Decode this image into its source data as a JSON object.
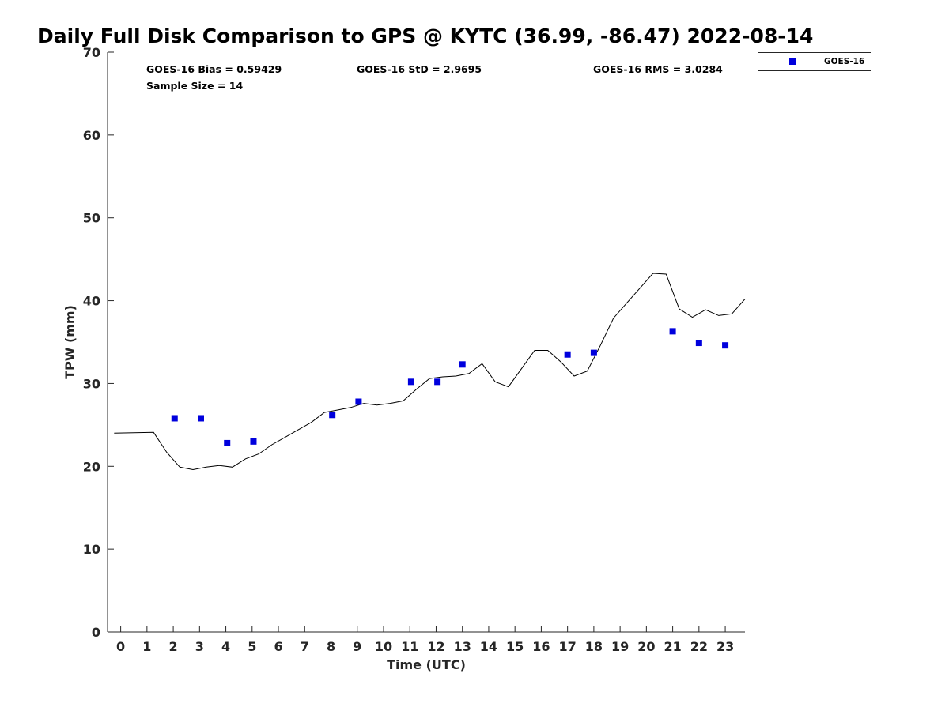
{
  "chart_data": {
    "type": "scatter",
    "title": "Daily Full Disk Comparison to GPS @ KYTC (36.99, -86.47) 2022-08-14",
    "xlabel": "Time (UTC)",
    "ylabel": "TPW (mm)",
    "xlim": [
      -0.5,
      23.75
    ],
    "ylim": [
      0,
      70
    ],
    "xticks": [
      0,
      1,
      2,
      3,
      4,
      5,
      6,
      7,
      8,
      9,
      10,
      11,
      12,
      13,
      14,
      15,
      16,
      17,
      18,
      19,
      20,
      21,
      22,
      23
    ],
    "yticks": [
      0,
      10,
      20,
      30,
      40,
      50,
      60,
      70
    ],
    "grid": false,
    "legend_position": "top-right (outside)",
    "stats": {
      "bias": "GOES-16 Bias = 0.59429",
      "std": "GOES-16 StD = 2.9695",
      "rms": "GOES-16 RMS = 3.0284",
      "sample": "Sample Size = 14"
    },
    "series": [
      {
        "name": "GOES-16",
        "kind": "scatter",
        "marker": "square",
        "color": "#0000dd",
        "x": [
          2.05,
          3.05,
          4.05,
          5.05,
          8.05,
          9.05,
          11.05,
          12.05,
          13.0,
          17.0,
          18.0,
          21.0,
          22.0,
          23.0
        ],
        "y": [
          25.8,
          25.8,
          22.8,
          23.0,
          26.2,
          27.8,
          30.2,
          30.2,
          32.3,
          33.5,
          33.7,
          36.3,
          34.9,
          34.6
        ]
      },
      {
        "kind": "line",
        "color": "#000000",
        "x": [
          -0.25,
          1.25,
          1.75,
          2.25,
          2.75,
          3.25,
          3.75,
          4.25,
          4.75,
          5.25,
          5.75,
          6.25,
          6.75,
          7.25,
          7.75,
          8.25,
          8.75,
          9.25,
          9.75,
          10.25,
          10.75,
          11.25,
          11.75,
          12.25,
          12.75,
          13.25,
          13.75,
          14.25,
          14.75,
          15.25,
          15.75,
          16.25,
          16.75,
          17.25,
          17.75,
          18.25,
          18.75,
          19.25,
          19.75,
          20.25,
          20.75,
          21.25,
          21.75,
          22.25,
          22.75,
          23.25,
          23.75
        ],
        "y": [
          24.0,
          24.1,
          21.7,
          19.9,
          19.6,
          19.9,
          20.1,
          19.9,
          20.9,
          21.5,
          22.6,
          23.5,
          24.4,
          25.3,
          26.5,
          26.8,
          27.1,
          27.6,
          27.4,
          27.6,
          27.9,
          29.3,
          30.6,
          30.8,
          30.9,
          31.2,
          32.4,
          30.2,
          29.6,
          31.8,
          34.0,
          34.0,
          32.6,
          30.9,
          31.5,
          34.6,
          37.9,
          39.7,
          41.5,
          43.3,
          43.2,
          39.0,
          38.0,
          38.9,
          38.2,
          38.4,
          40.2
        ]
      }
    ]
  }
}
